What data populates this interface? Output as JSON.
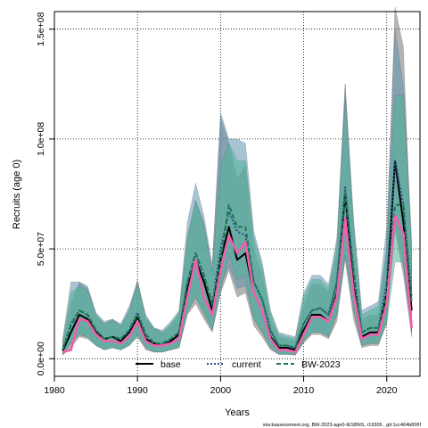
{
  "chart_data": {
    "type": "line",
    "xlabel": "Years",
    "ylabel": "Recruits (age 0)",
    "xlim": [
      1980,
      2024
    ],
    "ylim": [
      -8000000,
      158000000
    ],
    "x_ticks": [
      1980,
      1990,
      2000,
      2010,
      2020
    ],
    "y_ticks": [
      {
        "value": 0,
        "label": "0.0e+00"
      },
      {
        "value": 50000000,
        "label": "5.0e+07"
      },
      {
        "value": 100000000,
        "label": "1.0e+08"
      },
      {
        "value": 150000000,
        "label": "1.5e+08"
      }
    ],
    "grid": true,
    "legend": {
      "placement": "bottom",
      "entries": [
        "base",
        "current",
        "BW-2023"
      ]
    },
    "years": [
      1981,
      1982,
      1983,
      1984,
      1985,
      1986,
      1987,
      1988,
      1989,
      1990,
      1991,
      1992,
      1993,
      1994,
      1995,
      1996,
      1997,
      1998,
      1999,
      2000,
      2001,
      2002,
      2003,
      2004,
      2005,
      2006,
      2007,
      2008,
      2009,
      2010,
      2011,
      2012,
      2013,
      2014,
      2015,
      2016,
      2017,
      2018,
      2019,
      2020,
      2021,
      2022,
      2023
    ],
    "series": [
      {
        "name": "base",
        "color": "#000000",
        "style": "solid",
        "values": [
          3.5,
          12,
          20,
          18,
          12,
          9,
          10,
          8,
          12,
          19,
          9,
          7,
          6,
          8,
          11,
          32,
          45,
          35,
          22,
          45,
          60,
          45,
          48,
          30,
          22,
          10,
          5,
          5,
          4,
          13,
          20,
          20,
          17,
          30,
          75,
          33,
          10,
          12,
          12,
          30,
          90,
          62,
          22
        ],
        "lower": [
          1.5,
          5,
          10,
          9,
          6,
          4,
          5,
          4,
          6,
          10,
          4,
          3,
          3,
          4,
          5,
          20,
          25,
          18,
          12,
          30,
          40,
          28,
          30,
          15,
          10,
          4,
          2,
          2,
          1.5,
          7,
          11,
          11,
          9,
          17,
          45,
          18,
          5,
          6,
          6,
          16,
          58,
          38,
          10
        ],
        "upper": [
          8,
          25,
          35,
          32,
          20,
          16,
          18,
          15,
          22,
          36,
          18,
          14,
          12,
          15,
          20,
          55,
          72,
          62,
          40,
          110,
          98,
          82,
          88,
          50,
          38,
          18,
          10,
          9,
          8,
          24,
          34,
          34,
          30,
          48,
          125,
          58,
          18,
          20,
          20,
          50,
          160,
          142,
          45
        ]
      },
      {
        "name": "current",
        "color": "#2b4c7e",
        "style": "dotted",
        "values": [
          4,
          16,
          22,
          20,
          13,
          9,
          10,
          9,
          13,
          21,
          11,
          7,
          7,
          9,
          12,
          35,
          48,
          38,
          25,
          50,
          67,
          58,
          56,
          35,
          27,
          13,
          6,
          6,
          5,
          16,
          22,
          23,
          20,
          35,
          78,
          40,
          12,
          14,
          14,
          35,
          90,
          70,
          28
        ],
        "lower": [
          2,
          7,
          11,
          10,
          6,
          4,
          5,
          4,
          6,
          11,
          5,
          3,
          3,
          4,
          5,
          21,
          28,
          21,
          13,
          33,
          42,
          32,
          33,
          18,
          12,
          5,
          2,
          2,
          2,
          8,
          12,
          12,
          10,
          20,
          47,
          22,
          6,
          7,
          7,
          18,
          62,
          42,
          12
        ],
        "upper": [
          9,
          35,
          35,
          33,
          21,
          17,
          18,
          16,
          24,
          35,
          20,
          14,
          13,
          17,
          22,
          62,
          80,
          65,
          43,
          112,
          100,
          100,
          98,
          58,
          44,
          22,
          12,
          11,
          10,
          30,
          38,
          38,
          34,
          55,
          125,
          64,
          22,
          24,
          26,
          60,
          150,
          124,
          55
        ]
      },
      {
        "name": "BW-2023",
        "color": "#1a7a4a",
        "style": "dashed",
        "values": [
          4,
          15,
          22,
          20,
          13,
          9,
          10,
          9,
          13,
          20,
          11,
          7,
          7,
          9,
          12,
          35,
          48,
          38,
          25,
          45,
          70,
          60,
          60,
          35,
          27,
          13,
          6,
          6,
          5,
          16,
          22,
          23,
          20,
          35,
          75,
          40,
          12,
          14,
          14,
          30,
          70,
          70,
          25
        ],
        "lower": [
          2,
          7,
          11,
          10,
          6,
          4,
          5,
          4,
          6,
          10,
          5,
          3,
          3,
          4,
          5,
          21,
          28,
          20,
          13,
          30,
          48,
          36,
          38,
          18,
          12,
          5,
          2,
          2,
          2,
          8,
          12,
          12,
          10,
          20,
          47,
          22,
          6,
          7,
          7,
          16,
          44,
          44,
          12
        ],
        "upper": [
          8,
          30,
          33,
          31,
          20,
          16,
          17,
          15,
          22,
          34,
          19,
          14,
          12,
          16,
          21,
          55,
          72,
          60,
          40,
          88,
          98,
          90,
          90,
          55,
          42,
          21,
          11,
          10,
          9,
          28,
          36,
          36,
          32,
          52,
          118,
          62,
          20,
          22,
          24,
          50,
          120,
          120,
          50
        ]
      },
      {
        "name": "",
        "color": "#ee5fae",
        "style": "solid",
        "values": [
          3,
          4,
          18,
          17,
          11,
          8,
          8,
          7,
          10,
          17,
          8,
          6,
          6,
          7,
          9,
          28,
          45,
          28,
          20,
          40,
          56,
          48,
          53,
          30,
          22,
          9,
          4,
          4,
          3,
          11,
          19,
          19,
          17,
          28,
          64,
          30,
          9,
          11,
          11,
          25,
          65,
          57,
          14
        ]
      }
    ],
    "band_colors": [
      "#777777",
      "#5e93b3",
      "#4eb595"
    ],
    "footer": "stockassessment.org, BW-2023-age0-IESBNS, r19305 , git:1cc464b806f"
  }
}
